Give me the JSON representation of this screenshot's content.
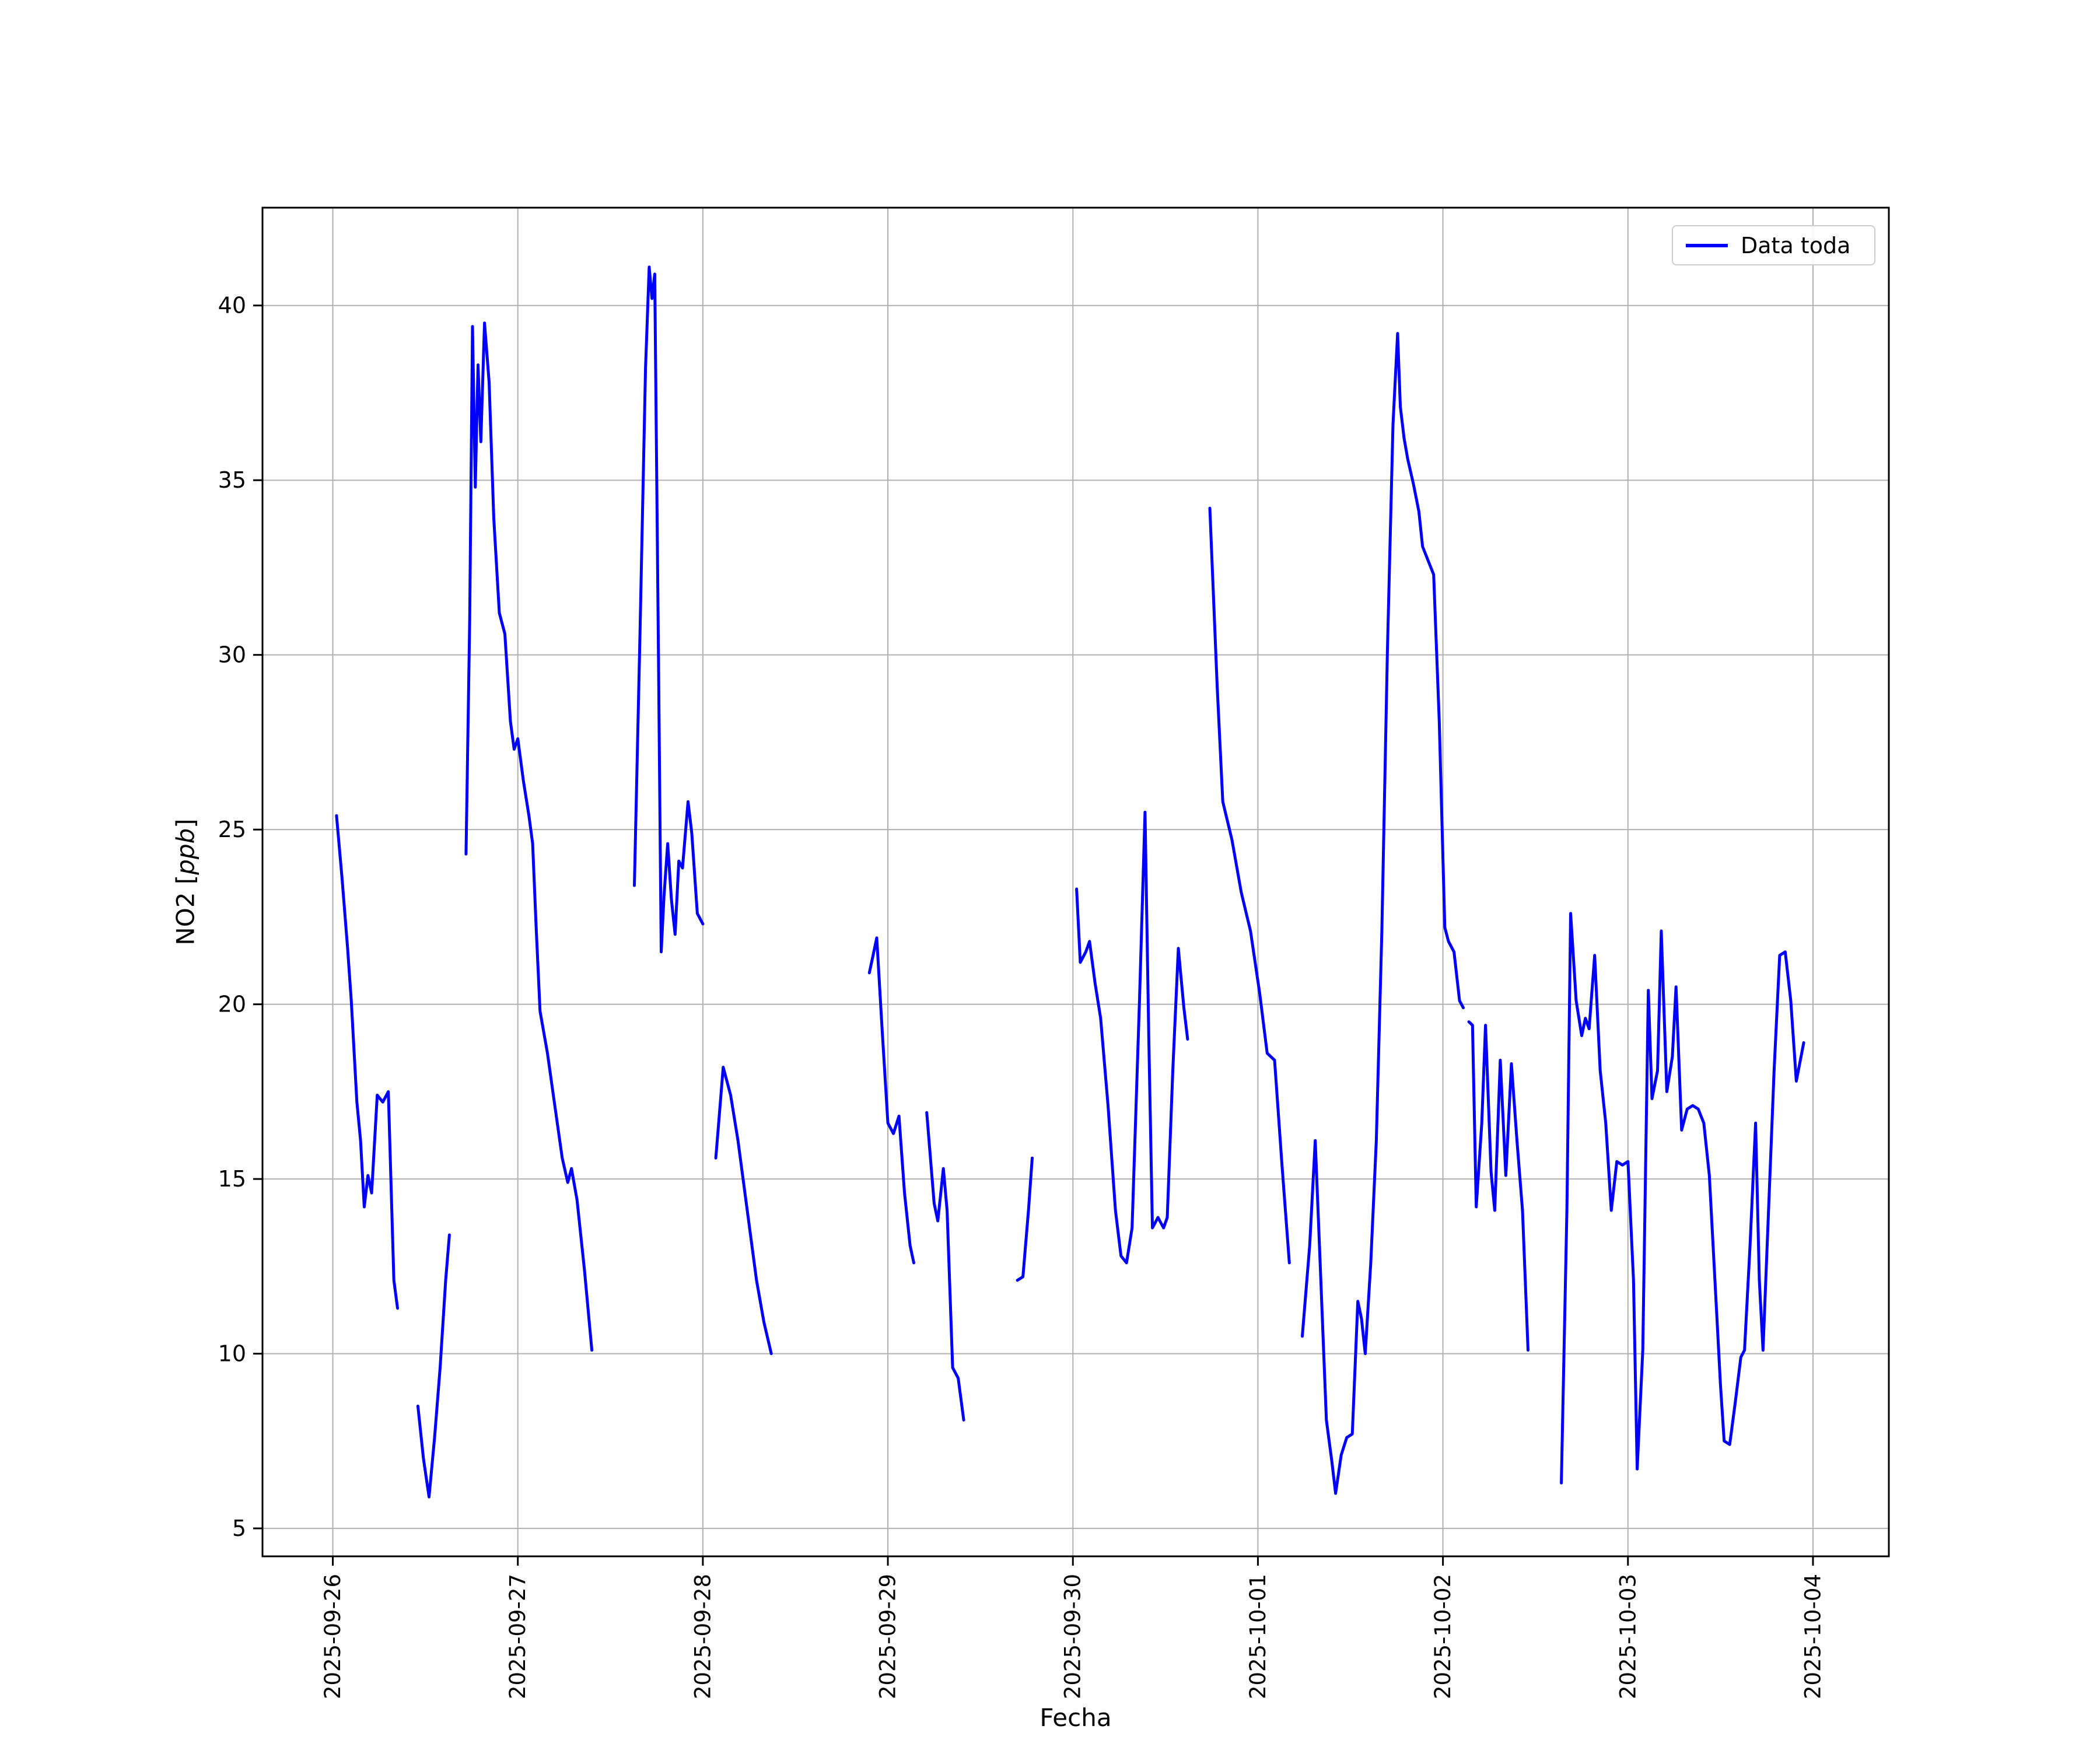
{
  "figure": {
    "background": "#ffffff"
  },
  "chart_data": {
    "type": "line",
    "title": "",
    "xlabel": "Fecha",
    "ylabel_prefix": "NO2 [",
    "ylabel_italic": "ppb",
    "ylabel_suffix": "]",
    "legend": {
      "label": "Data toda",
      "position": "upper right"
    },
    "line_color": "#0000ff",
    "grid": true,
    "grid_color": "#b0b0b0",
    "x_unit": "days since 2025-09-26 00:00",
    "xlim": [
      -0.38,
      8.41
    ],
    "ylim": [
      4.2,
      42.8
    ],
    "x_ticks": [
      0,
      1,
      2,
      3,
      4,
      5,
      6,
      7,
      8
    ],
    "x_ticklabels": [
      "2025-09-26",
      "2025-09-27",
      "2025-09-28",
      "2025-09-29",
      "2025-09-30",
      "2025-10-01",
      "2025-10-02",
      "2025-10-03",
      "2025-10-04"
    ],
    "y_ticks": [
      5,
      10,
      15,
      20,
      25,
      30,
      35,
      40
    ],
    "y_ticklabels": [
      "5",
      "10",
      "15",
      "20",
      "25",
      "30",
      "35",
      "40"
    ],
    "segments": [
      [
        [
          0.02,
          25.4
        ],
        [
          0.05,
          23.6
        ],
        [
          0.08,
          21.6
        ],
        [
          0.1,
          20.1
        ],
        [
          0.13,
          17.2
        ],
        [
          0.15,
          16.1
        ],
        [
          0.17,
          14.2
        ],
        [
          0.19,
          15.1
        ],
        [
          0.21,
          14.6
        ],
        [
          0.24,
          17.4
        ],
        [
          0.27,
          17.2
        ],
        [
          0.3,
          17.5
        ],
        [
          0.33,
          12.1
        ],
        [
          0.35,
          11.3
        ]
      ],
      [
        [
          0.46,
          8.5
        ],
        [
          0.49,
          7.0
        ],
        [
          0.52,
          5.9
        ],
        [
          0.55,
          7.6
        ],
        [
          0.58,
          9.6
        ],
        [
          0.61,
          12.1
        ],
        [
          0.63,
          13.4
        ]
      ],
      [
        [
          0.72,
          24.3
        ],
        [
          0.74,
          31.0
        ],
        [
          0.755,
          39.4
        ],
        [
          0.77,
          34.8
        ],
        [
          0.785,
          38.3
        ],
        [
          0.8,
          36.1
        ],
        [
          0.82,
          39.5
        ],
        [
          0.845,
          37.8
        ],
        [
          0.87,
          33.9
        ],
        [
          0.9,
          31.2
        ],
        [
          0.93,
          30.6
        ],
        [
          0.96,
          28.1
        ],
        [
          0.98,
          27.3
        ],
        [
          1.0,
          27.6
        ],
        [
          1.03,
          26.4
        ],
        [
          1.06,
          25.4
        ],
        [
          1.08,
          24.6
        ],
        [
          1.1,
          22.1
        ],
        [
          1.12,
          19.8
        ],
        [
          1.16,
          18.6
        ],
        [
          1.2,
          17.1
        ],
        [
          1.24,
          15.6
        ],
        [
          1.27,
          14.9
        ],
        [
          1.29,
          15.3
        ],
        [
          1.32,
          14.4
        ],
        [
          1.36,
          12.4
        ],
        [
          1.4,
          10.1
        ]
      ],
      [
        [
          1.63,
          23.4
        ],
        [
          1.66,
          30.5
        ],
        [
          1.69,
          38.2
        ],
        [
          1.71,
          41.1
        ],
        [
          1.725,
          40.2
        ],
        [
          1.74,
          40.9
        ],
        [
          1.76,
          30.0
        ],
        [
          1.775,
          21.5
        ],
        [
          1.79,
          23.1
        ],
        [
          1.81,
          24.6
        ],
        [
          1.83,
          23.0
        ],
        [
          1.85,
          22.0
        ],
        [
          1.87,
          24.1
        ],
        [
          1.89,
          23.9
        ],
        [
          1.92,
          25.8
        ],
        [
          1.94,
          24.9
        ],
        [
          1.97,
          22.6
        ],
        [
          2.0,
          22.3
        ]
      ],
      [
        [
          2.07,
          15.6
        ],
        [
          2.11,
          18.2
        ],
        [
          2.15,
          17.4
        ],
        [
          2.19,
          16.1
        ],
        [
          2.24,
          14.1
        ],
        [
          2.29,
          12.1
        ],
        [
          2.33,
          10.9
        ],
        [
          2.37,
          10.0
        ]
      ],
      [
        [
          2.9,
          20.9
        ],
        [
          2.92,
          21.4
        ],
        [
          2.94,
          21.9
        ],
        [
          2.97,
          19.2
        ],
        [
          3.0,
          16.6
        ],
        [
          3.03,
          16.3
        ],
        [
          3.06,
          16.8
        ],
        [
          3.09,
          14.6
        ],
        [
          3.12,
          13.1
        ],
        [
          3.14,
          12.6
        ]
      ],
      [
        [
          3.21,
          16.9
        ],
        [
          3.25,
          14.3
        ],
        [
          3.27,
          13.8
        ],
        [
          3.3,
          15.3
        ],
        [
          3.32,
          14.1
        ],
        [
          3.35,
          9.6
        ],
        [
          3.38,
          9.3
        ],
        [
          3.41,
          8.1
        ]
      ],
      [
        [
          3.7,
          12.1
        ],
        [
          3.73,
          12.2
        ],
        [
          3.76,
          14.1
        ],
        [
          3.78,
          15.6
        ]
      ],
      [
        [
          4.02,
          23.3
        ],
        [
          4.04,
          21.2
        ],
        [
          4.07,
          21.5
        ],
        [
          4.09,
          21.8
        ],
        [
          4.12,
          20.6
        ],
        [
          4.15,
          19.6
        ],
        [
          4.19,
          17.1
        ],
        [
          4.23,
          14.1
        ],
        [
          4.26,
          12.8
        ],
        [
          4.29,
          12.6
        ],
        [
          4.32,
          13.6
        ],
        [
          4.36,
          20.1
        ],
        [
          4.39,
          25.5
        ],
        [
          4.41,
          19.1
        ],
        [
          4.43,
          13.6
        ],
        [
          4.46,
          13.9
        ],
        [
          4.49,
          13.6
        ],
        [
          4.51,
          13.9
        ],
        [
          4.54,
          18.1
        ],
        [
          4.57,
          21.6
        ],
        [
          4.6,
          19.9
        ],
        [
          4.62,
          19.0
        ]
      ],
      [
        [
          4.74,
          34.2
        ],
        [
          4.78,
          29.1
        ],
        [
          4.81,
          25.8
        ],
        [
          4.86,
          24.7
        ],
        [
          4.91,
          23.2
        ],
        [
          4.96,
          22.1
        ],
        [
          5.01,
          20.3
        ],
        [
          5.05,
          18.6
        ],
        [
          5.09,
          18.4
        ],
        [
          5.13,
          15.4
        ],
        [
          5.17,
          12.6
        ]
      ],
      [
        [
          5.24,
          10.5
        ],
        [
          5.28,
          13.1
        ],
        [
          5.31,
          16.1
        ],
        [
          5.34,
          12.1
        ],
        [
          5.37,
          8.1
        ],
        [
          5.4,
          6.9
        ],
        [
          5.42,
          6.0
        ],
        [
          5.45,
          7.1
        ],
        [
          5.48,
          7.6
        ],
        [
          5.51,
          7.7
        ],
        [
          5.54,
          11.5
        ],
        [
          5.56,
          11.0
        ],
        [
          5.58,
          10.0
        ],
        [
          5.61,
          12.6
        ],
        [
          5.64,
          16.1
        ],
        [
          5.67,
          22.1
        ],
        [
          5.7,
          30.1
        ],
        [
          5.73,
          36.6
        ],
        [
          5.755,
          39.2
        ],
        [
          5.77,
          37.1
        ],
        [
          5.79,
          36.2
        ],
        [
          5.81,
          35.6
        ],
        [
          5.84,
          34.9
        ],
        [
          5.87,
          34.1
        ],
        [
          5.89,
          33.1
        ],
        [
          5.92,
          32.7
        ],
        [
          5.95,
          32.3
        ],
        [
          5.98,
          28.1
        ],
        [
          6.01,
          22.2
        ],
        [
          6.03,
          21.8
        ],
        [
          6.06,
          21.5
        ],
        [
          6.09,
          20.1
        ],
        [
          6.11,
          19.9
        ]
      ],
      [
        [
          6.14,
          19.5
        ],
        [
          6.16,
          19.4
        ],
        [
          6.18,
          14.2
        ],
        [
          6.21,
          16.6
        ],
        [
          6.23,
          19.4
        ],
        [
          6.26,
          15.2
        ],
        [
          6.28,
          14.1
        ],
        [
          6.31,
          18.4
        ],
        [
          6.34,
          15.1
        ],
        [
          6.37,
          18.3
        ],
        [
          6.4,
          16.1
        ],
        [
          6.43,
          14.1
        ],
        [
          6.46,
          10.1
        ]
      ],
      [
        [
          6.64,
          6.3
        ],
        [
          6.67,
          14.1
        ],
        [
          6.69,
          22.6
        ],
        [
          6.72,
          20.1
        ],
        [
          6.75,
          19.1
        ],
        [
          6.77,
          19.6
        ],
        [
          6.79,
          19.3
        ],
        [
          6.82,
          21.4
        ],
        [
          6.85,
          18.1
        ],
        [
          6.88,
          16.6
        ],
        [
          6.91,
          14.1
        ],
        [
          6.94,
          15.5
        ],
        [
          6.97,
          15.4
        ],
        [
          7.0,
          15.5
        ],
        [
          7.03,
          12.1
        ],
        [
          7.05,
          6.7
        ],
        [
          7.08,
          10.1
        ],
        [
          7.11,
          20.4
        ],
        [
          7.13,
          17.3
        ],
        [
          7.16,
          18.1
        ],
        [
          7.18,
          22.1
        ],
        [
          7.21,
          17.5
        ],
        [
          7.24,
          18.5
        ],
        [
          7.26,
          20.5
        ],
        [
          7.29,
          16.4
        ],
        [
          7.32,
          17.0
        ],
        [
          7.35,
          17.1
        ],
        [
          7.38,
          17.0
        ],
        [
          7.41,
          16.6
        ],
        [
          7.44,
          15.1
        ],
        [
          7.47,
          12.1
        ],
        [
          7.5,
          9.1
        ],
        [
          7.52,
          7.5
        ],
        [
          7.55,
          7.4
        ],
        [
          7.58,
          8.6
        ],
        [
          7.61,
          9.9
        ],
        [
          7.63,
          10.1
        ],
        [
          7.66,
          13.1
        ],
        [
          7.69,
          16.6
        ],
        [
          7.71,
          12.1
        ],
        [
          7.73,
          10.1
        ],
        [
          7.76,
          14.1
        ],
        [
          7.79,
          18.1
        ],
        [
          7.82,
          21.4
        ],
        [
          7.85,
          21.5
        ],
        [
          7.88,
          20.1
        ],
        [
          7.91,
          17.8
        ],
        [
          7.95,
          18.9
        ]
      ]
    ]
  }
}
